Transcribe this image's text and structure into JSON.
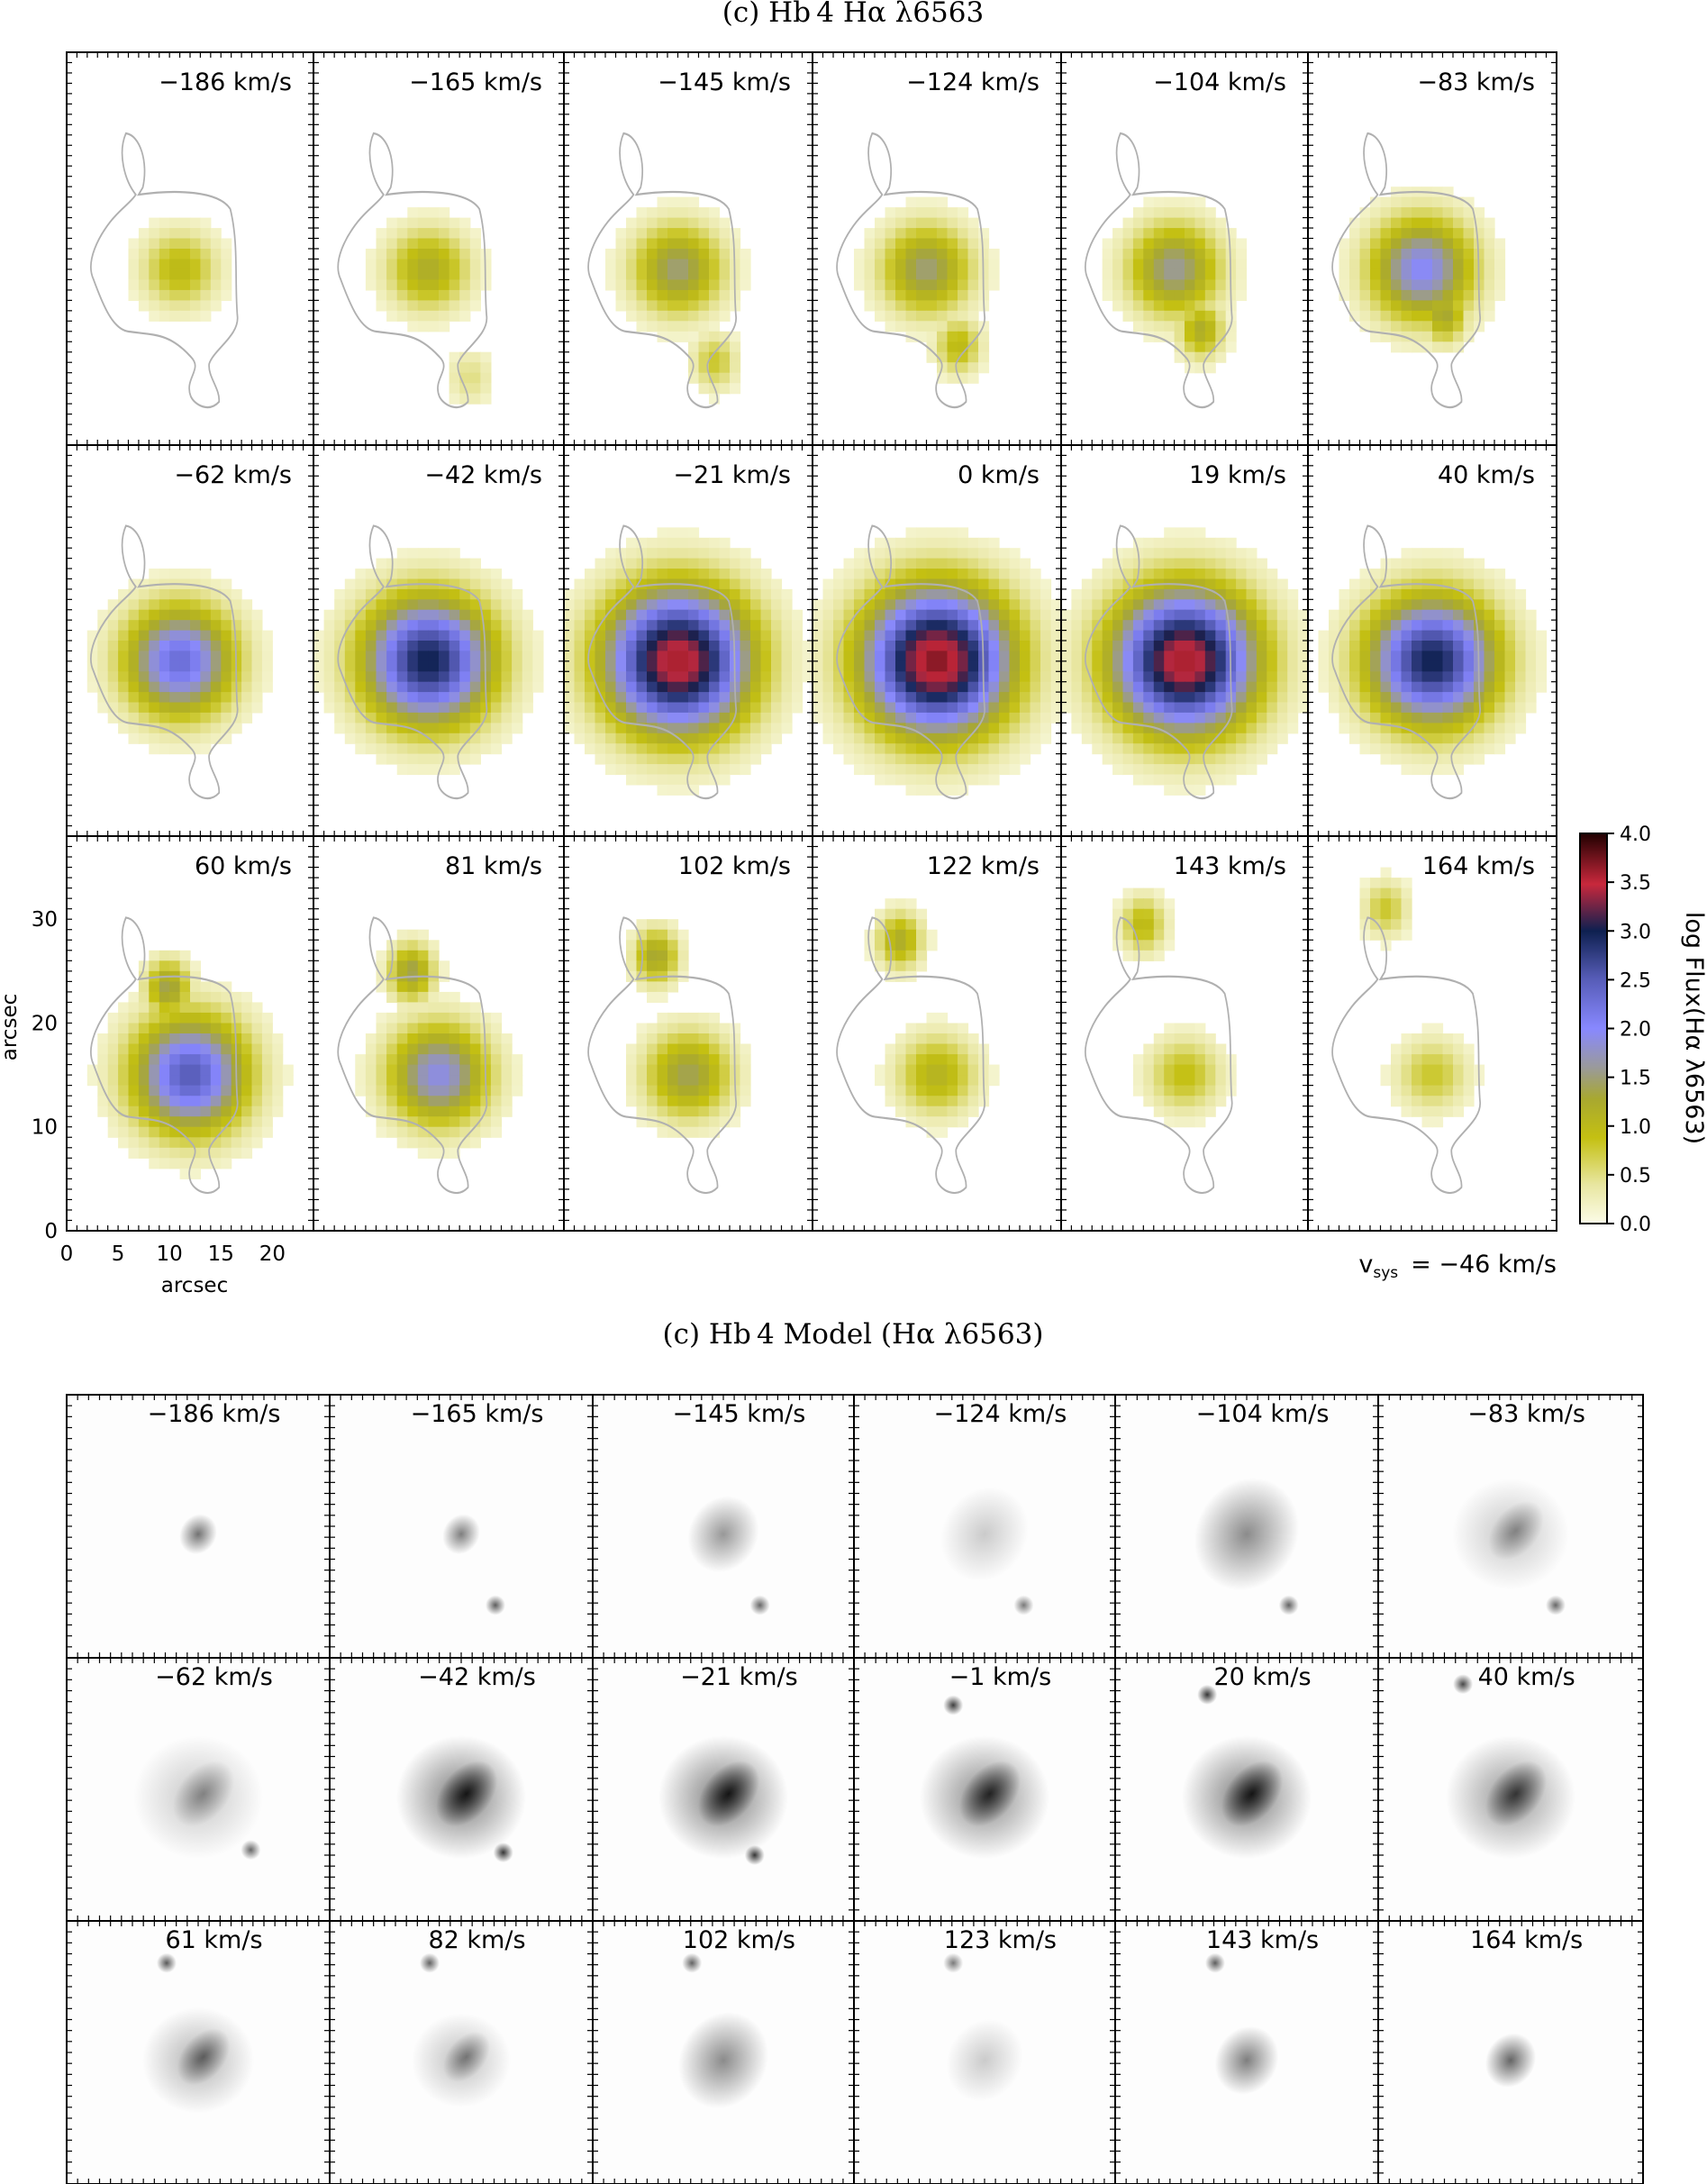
{
  "chart_data": [
    {
      "type": "heatmap",
      "title": "(c) Hb 4 Hα λ6563",
      "panel_velocities": [
        "−186 km/s",
        "−165 km/s",
        "−145 km/s",
        "−124 km/s",
        "−104 km/s",
        "−83 km/s",
        "−62 km/s",
        "−42 km/s",
        "−21 km/s",
        "0 km/s",
        "19 km/s",
        "40 km/s",
        "60 km/s",
        "81 km/s",
        "102 km/s",
        "122 km/s",
        "143 km/s",
        "164 km/s"
      ],
      "panel_peak_log_flux": [
        1.0,
        1.2,
        1.5,
        1.5,
        1.6,
        2.0,
        2.3,
        3.0,
        3.6,
        3.7,
        3.6,
        3.0,
        2.5,
        1.9,
        1.4,
        1.1,
        0.9,
        0.8
      ],
      "panel_tail_log_flux": [
        0.0,
        0.5,
        0.8,
        1.0,
        1.2,
        1.3,
        1.3,
        1.2,
        1.1,
        1.0,
        1.0,
        1.3,
        1.4,
        1.4,
        1.3,
        1.2,
        1.0,
        0.8
      ],
      "xlabel": "arcsec",
      "ylabel": "arcsec",
      "xticks": [
        "0",
        "5",
        "10",
        "15",
        "20"
      ],
      "yticks": [
        "0",
        "10",
        "20",
        "30"
      ],
      "xlim": [
        0,
        24
      ],
      "ylim": [
        0,
        38
      ],
      "colorbar": {
        "label": "log Flux(Hα λ6563)",
        "ticks": [
          "4.0",
          "3.5",
          "3.0",
          "2.5",
          "2.0",
          "1.5",
          "1.0",
          "0.5",
          "0.0"
        ],
        "range": [
          0.0,
          4.0
        ],
        "colors": [
          "#fcfce8",
          "#e8e6a0",
          "#c4c012",
          "#a8a830",
          "#9a9a9a",
          "#8888ff",
          "#555bb5",
          "#0e2050",
          "#c8283c",
          "#200000"
        ]
      },
      "vsys_label": "v",
      "vsys_sub": "sys",
      "vsys_value": "= −46 km/s"
    },
    {
      "type": "heatmap",
      "title": "(c) Hb 4 Model (Hα λ6563)",
      "panel_velocities": [
        "−186 km/s",
        "−165 km/s",
        "−145 km/s",
        "−124 km/s",
        "−104 km/s",
        "−83 km/s",
        "−62 km/s",
        "−42 km/s",
        "−21 km/s",
        "−1 km/s",
        "20 km/s",
        "40 km/s",
        "61 km/s",
        "82 km/s",
        "102 km/s",
        "123 km/s",
        "143 km/s",
        "164 km/s"
      ],
      "panel_intensity": [
        0.55,
        0.5,
        0.4,
        0.2,
        0.45,
        0.4,
        0.4,
        0.95,
        0.95,
        0.85,
        0.95,
        0.75,
        0.55,
        0.45,
        0.45,
        0.2,
        0.5,
        0.6
      ]
    }
  ]
}
